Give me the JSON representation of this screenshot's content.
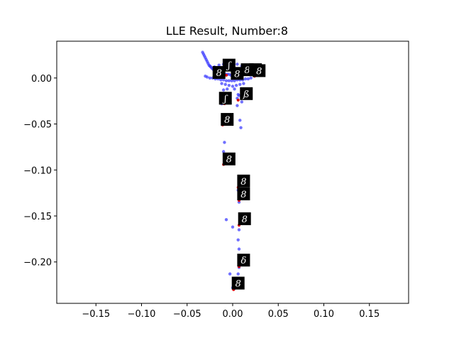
{
  "chart_data": {
    "type": "scatter",
    "title": "LLE Result, Number:8",
    "xlabel": "",
    "ylabel": "",
    "xlim": [
      -0.193,
      0.193
    ],
    "ylim": [
      -0.245,
      0.04
    ],
    "x_ticks": [
      -0.15,
      -0.1,
      -0.05,
      0.0,
      0.05,
      0.1,
      0.15
    ],
    "x_tick_labels": [
      "−0.15",
      "−0.10",
      "−0.05",
      "0.00",
      "0.05",
      "0.10",
      "0.15"
    ],
    "y_ticks": [
      0.0,
      -0.05,
      -0.1,
      -0.15,
      -0.2
    ],
    "y_tick_labels": [
      "0.00",
      "−0.05",
      "−0.10",
      "−0.15",
      "−0.20"
    ],
    "grid": false,
    "colors": {
      "points": "#3333ff",
      "highlight": "#dd0000",
      "thumb_bg": "#000000",
      "digit": "#ffffff"
    },
    "series": [
      {
        "name": "",
        "x": [
          -0.033,
          -0.032,
          -0.031,
          -0.03,
          -0.029,
          -0.028,
          -0.027,
          -0.026,
          -0.025,
          -0.024,
          -0.023,
          -0.022,
          -0.021,
          -0.02,
          -0.018,
          -0.016,
          -0.014,
          -0.012,
          -0.01,
          -0.008,
          -0.006,
          -0.004,
          -0.002,
          0.0,
          0.002,
          0.004,
          0.006,
          0.008,
          0.01,
          0.012,
          0.014,
          0.016,
          0.018,
          0.02,
          0.022,
          0.024,
          0.026,
          -0.03,
          -0.028,
          -0.025,
          -0.022,
          -0.019,
          -0.016,
          -0.013,
          -0.01,
          -0.007,
          -0.004,
          -0.001,
          0.002,
          0.005,
          0.008,
          0.011,
          0.014,
          0.017,
          0.02,
          -0.02,
          -0.015,
          -0.01,
          -0.005,
          0.0,
          0.005,
          0.01,
          0.015,
          -0.012,
          -0.008,
          -0.004,
          0.0,
          0.004,
          0.008,
          0.012,
          -0.006,
          0.002,
          0.01,
          0.006,
          -0.01,
          -0.009,
          -0.008,
          0.005,
          0.007,
          0.01,
          -0.012,
          0.005,
          0.008,
          -0.01,
          0.009,
          -0.009,
          -0.01,
          -0.008,
          0.006,
          0.007,
          -0.007,
          0.0,
          0.007,
          0.006,
          0.007,
          0.007,
          0.007,
          0.006,
          0.005,
          0.004,
          -0.003,
          0.001,
          0.0,
          0.002
        ],
        "y": [
          0.028,
          0.026,
          0.024,
          0.022,
          0.02,
          0.018,
          0.016,
          0.014,
          0.013,
          0.012,
          0.011,
          0.01,
          0.009,
          0.008,
          0.007,
          0.006,
          0.005,
          0.005,
          0.004,
          0.004,
          0.004,
          0.004,
          0.003,
          0.003,
          0.003,
          0.004,
          0.004,
          0.005,
          0.005,
          0.006,
          0.006,
          0.006,
          0.007,
          0.007,
          0.007,
          0.006,
          0.005,
          0.002,
          0.001,
          0.0,
          0.0,
          -0.001,
          -0.001,
          -0.002,
          -0.002,
          -0.003,
          -0.003,
          -0.003,
          -0.003,
          -0.002,
          -0.002,
          -0.002,
          -0.001,
          -0.001,
          0.0,
          0.012,
          0.014,
          0.015,
          0.016,
          0.016,
          0.015,
          0.013,
          0.011,
          -0.006,
          -0.007,
          -0.008,
          -0.009,
          -0.008,
          -0.007,
          -0.006,
          -0.012,
          -0.012,
          -0.012,
          -0.018,
          -0.013,
          -0.02,
          -0.025,
          -0.022,
          -0.019,
          -0.026,
          -0.028,
          -0.03,
          -0.046,
          -0.048,
          -0.054,
          -0.07,
          -0.08,
          -0.088,
          -0.122,
          -0.135,
          -0.154,
          -0.162,
          -0.165,
          -0.176,
          -0.186,
          -0.196,
          -0.206,
          -0.213,
          -0.222,
          -0.228,
          -0.213,
          -0.222,
          -0.228,
          -0.229
        ]
      }
    ],
    "highlight_points": {
      "x": [
        -0.007,
        -0.002,
        0.004,
        0.01,
        0.016,
        0.024,
        -0.009,
        0.006,
        -0.011,
        -0.01,
        0.006,
        0.007,
        0.007,
        0.007,
        0.001
      ],
      "y": [
        0.003,
        0.01,
        0.002,
        0.003,
        0.004,
        0.002,
        -0.028,
        -0.024,
        -0.051,
        -0.094,
        -0.119,
        -0.133,
        -0.16,
        -0.205,
        -0.23
      ]
    },
    "thumbnails": {
      "x": [
        -0.015,
        -0.004,
        0.005,
        0.016,
        0.025,
        0.029,
        -0.008,
        0.015,
        -0.006,
        -0.004,
        0.012,
        0.012,
        0.013,
        0.012,
        0.006
      ],
      "y": [
        0.006,
        0.014,
        0.005,
        0.009,
        0.009,
        0.008,
        -0.022,
        -0.017,
        -0.045,
        -0.088,
        -0.112,
        -0.126,
        -0.153,
        -0.198,
        -0.223
      ],
      "glyphs": [
        "8",
        "ʃ",
        "8",
        "8",
        "δ",
        "8",
        "ʃ",
        "ß",
        "8",
        "8",
        "8",
        "8",
        "8",
        "δ",
        "8"
      ]
    }
  }
}
